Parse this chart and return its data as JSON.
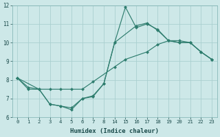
{
  "xlabel": "Humidex (Indice chaleur)",
  "bg_color": "#cde8e8",
  "line_color": "#2e7d6e",
  "grid_color": "#aacfcf",
  "tick_labels": [
    "0",
    "1",
    "2",
    "3",
    "4",
    "5",
    "6",
    "7",
    "8",
    "14",
    "15",
    "16",
    "17",
    "18",
    "19",
    "20",
    "21",
    "22",
    "23"
  ],
  "line1_pos": [
    0,
    1,
    2,
    3,
    4,
    5,
    6,
    7,
    8,
    9,
    10,
    11,
    12,
    13,
    14,
    15,
    16,
    17,
    18
  ],
  "line1_y": [
    8.1,
    7.6,
    7.5,
    6.7,
    6.6,
    6.5,
    7.0,
    7.1,
    7.8,
    10.0,
    11.9,
    10.8,
    11.0,
    10.7,
    10.1,
    10.0,
    10.0,
    9.5,
    9.1
  ],
  "line2_pos": [
    0,
    1,
    2,
    3,
    4,
    5,
    6,
    7,
    9,
    10,
    12,
    13,
    14,
    15,
    16,
    17,
    18
  ],
  "line2_y": [
    8.1,
    7.5,
    7.5,
    7.5,
    7.5,
    7.5,
    7.5,
    7.9,
    8.7,
    9.1,
    9.5,
    9.9,
    10.1,
    10.1,
    10.0,
    9.5,
    9.1
  ],
  "line3_pos": [
    0,
    2,
    3,
    4,
    5,
    6,
    7,
    8,
    9,
    11,
    12,
    13,
    14,
    15,
    16,
    17,
    18
  ],
  "line3_y": [
    8.1,
    7.5,
    6.7,
    6.6,
    6.4,
    7.0,
    7.15,
    7.8,
    10.0,
    10.9,
    11.05,
    10.65,
    10.1,
    10.0,
    10.0,
    9.5,
    9.1
  ],
  "xlim": [
    -0.5,
    18.5
  ],
  "ylim": [
    6,
    12
  ],
  "yticks": [
    6,
    7,
    8,
    9,
    10,
    11,
    12
  ],
  "xtick_pos": [
    0,
    1,
    2,
    3,
    4,
    5,
    6,
    7,
    8,
    9,
    10,
    11,
    12,
    13,
    14,
    15,
    16,
    17,
    18
  ]
}
